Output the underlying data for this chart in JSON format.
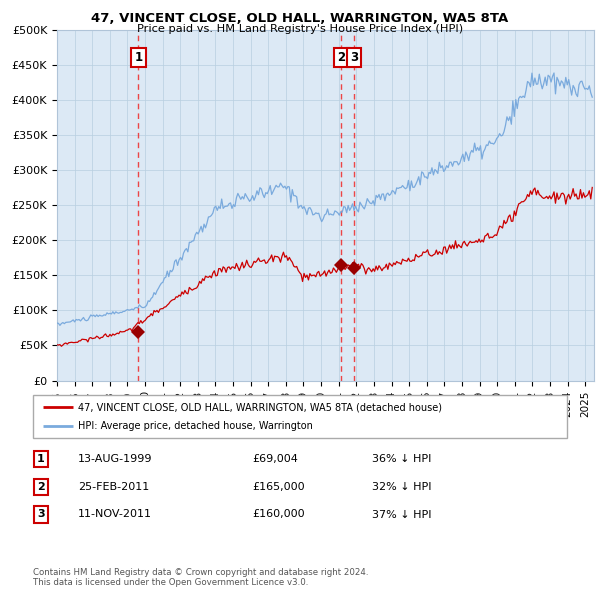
{
  "title": "47, VINCENT CLOSE, OLD HALL, WARRINGTON, WA5 8TA",
  "subtitle": "Price paid vs. HM Land Registry's House Price Index (HPI)",
  "plot_bg_color": "#dce9f5",
  "ylim": [
    0,
    500000
  ],
  "yticks": [
    0,
    50000,
    100000,
    150000,
    200000,
    250000,
    300000,
    350000,
    400000,
    450000,
    500000
  ],
  "ytick_labels": [
    "£0",
    "£50K",
    "£100K",
    "£150K",
    "£200K",
    "£250K",
    "£300K",
    "£350K",
    "£400K",
    "£450K",
    "£500K"
  ],
  "xmin": 1995.0,
  "xmax": 2025.5,
  "sale1_x": 1999.617,
  "sale1_y": 69004,
  "sale2_x": 2011.145,
  "sale2_y": 165000,
  "sale3_x": 2011.865,
  "sale3_y": 160000,
  "hpi_color": "#7aaadd",
  "sale_color": "#cc0000",
  "vline_color": "#ee3333",
  "legend_line1": "47, VINCENT CLOSE, OLD HALL, WARRINGTON, WA5 8TA (detached house)",
  "legend_line2": "HPI: Average price, detached house, Warrington",
  "table_rows": [
    {
      "num": "1",
      "date": "13-AUG-1999",
      "price": "£69,004",
      "pct": "36% ↓ HPI"
    },
    {
      "num": "2",
      "date": "25-FEB-2011",
      "price": "£165,000",
      "pct": "32% ↓ HPI"
    },
    {
      "num": "3",
      "date": "11-NOV-2011",
      "price": "£160,000",
      "pct": "37% ↓ HPI"
    }
  ],
  "footer": "Contains HM Land Registry data © Crown copyright and database right 2024.\nThis data is licensed under the Open Government Licence v3.0."
}
